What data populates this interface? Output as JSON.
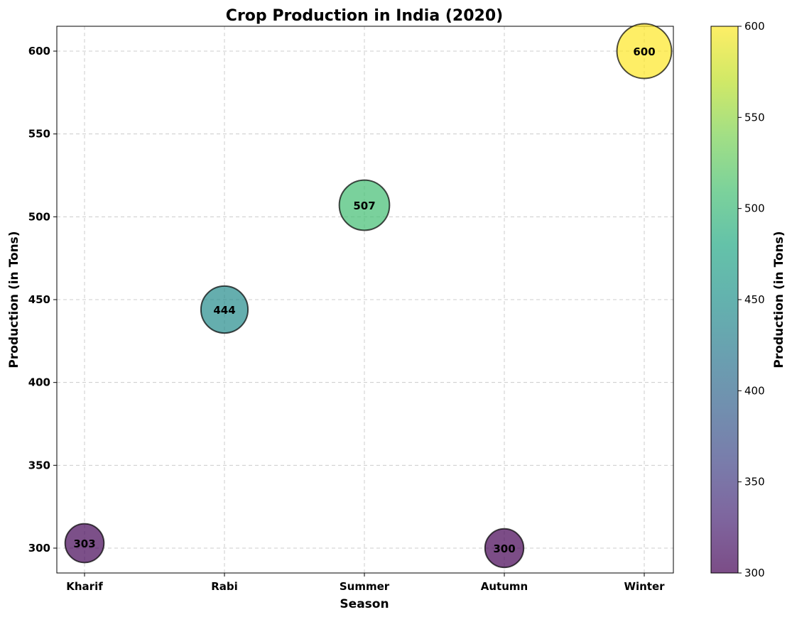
{
  "chart_data": {
    "type": "scatter",
    "title": "Crop Production in India (2020)",
    "xlabel": "Season",
    "ylabel": "Production (in Tons)",
    "categories": [
      "Kharif",
      "Rabi",
      "Summer",
      "Autumn",
      "Winter"
    ],
    "values": [
      303,
      444,
      507,
      300,
      600
    ],
    "labels": [
      "303",
      "444",
      "507",
      "300",
      "600"
    ],
    "ylim": [
      285,
      615
    ],
    "yticks": [
      300,
      350,
      400,
      450,
      500,
      550,
      600
    ],
    "ytick_labels": [
      "300",
      "350",
      "400",
      "450",
      "500",
      "550",
      "600"
    ],
    "grid": true,
    "bubble_size_encodes": "value",
    "colormap": "viridis",
    "marker_alpha": 0.7,
    "marker_edge_color": "#000000",
    "colorbar": {
      "label": "Production (in Tons)",
      "range": [
        300,
        600
      ],
      "ticks": [
        300,
        350,
        400,
        450,
        500,
        550,
        600
      ],
      "tick_labels": [
        "300",
        "350",
        "400",
        "450",
        "500",
        "550",
        "600"
      ]
    }
  }
}
